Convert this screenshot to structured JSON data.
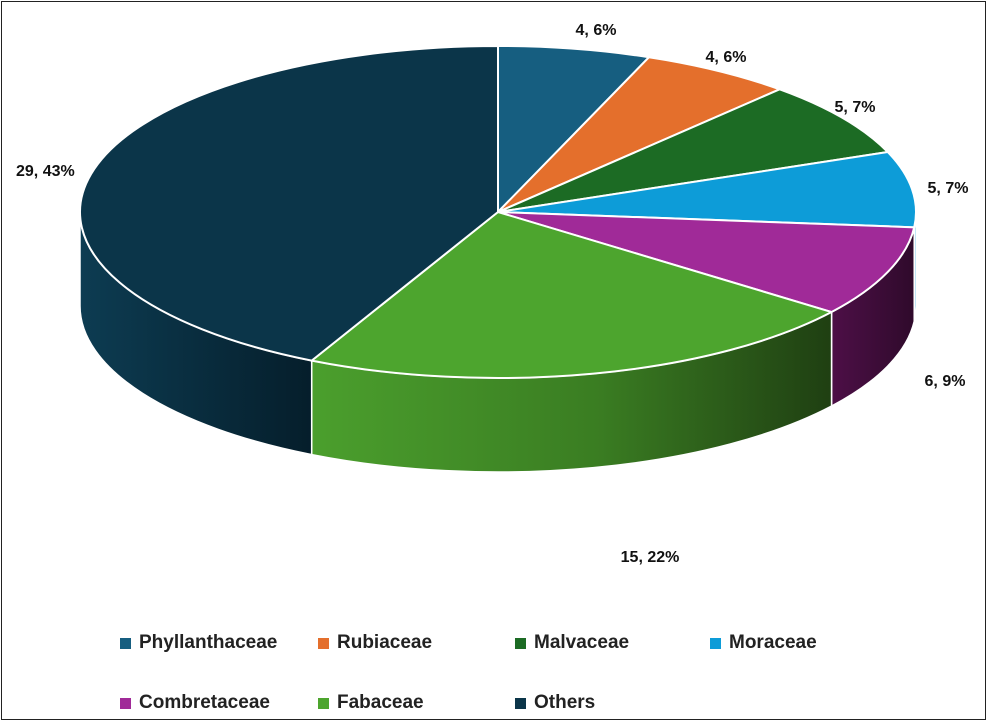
{
  "chart_data": {
    "type": "pie",
    "style": "3d-exploded-none",
    "title": "",
    "legend_position": "bottom",
    "series": [
      {
        "name": "",
        "slices": [
          {
            "category": "Phyllanthaceae",
            "value": 4,
            "percent": 6,
            "label": "4, 6%",
            "color": "#165e80"
          },
          {
            "category": "Rubiaceae",
            "value": 4,
            "percent": 6,
            "label": "4, 6%",
            "color": "#e46f2c"
          },
          {
            "category": "Malvaceae",
            "value": 5,
            "percent": 7,
            "label": "5, 7%",
            "color": "#1c6b24"
          },
          {
            "category": "Moraceae",
            "value": 5,
            "percent": 7,
            "label": "5, 7%",
            "color": "#0d9cd8"
          },
          {
            "category": "Combretaceae",
            "value": 6,
            "percent": 9,
            "label": "6, 9%",
            "color": "#a02a98"
          },
          {
            "category": "Fabaceae",
            "value": 15,
            "percent": 22,
            "label": "15, 22%",
            "color": "#4da52e"
          },
          {
            "category": "Others",
            "value": 29,
            "percent": 43,
            "label": "29, 43%",
            "color": "#0b3549"
          }
        ]
      }
    ],
    "legend": [
      "Phyllanthaceae",
      "Rubiaceae",
      "Malvaceae",
      "Moraceae",
      "Combretaceae",
      "Fabaceae",
      "Others"
    ]
  }
}
